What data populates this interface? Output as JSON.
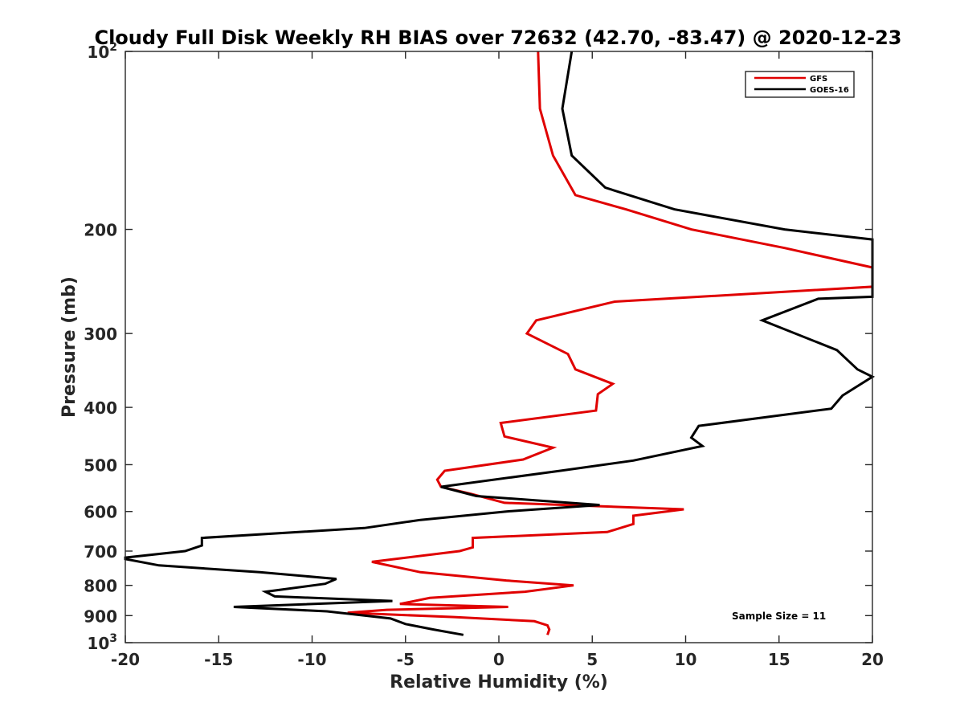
{
  "chart_data": {
    "type": "line",
    "title": "Cloudy Full Disk Weekly RH BIAS over 72632 (42.70, -83.47) @ 2020-12-23",
    "xlabel": "Relative Humidity (%)",
    "ylabel": "Pressure (mb)",
    "xlim": [
      -20,
      20
    ],
    "ylim": [
      100,
      1000
    ],
    "y_scale": "log",
    "y_reversed": true,
    "x_ticks": [
      -20,
      -15,
      -10,
      -5,
      0,
      5,
      10,
      15,
      20
    ],
    "x_tick_labels": [
      "-20",
      "-15",
      "-10",
      "-5",
      "0",
      "5",
      "10",
      "15",
      "20"
    ],
    "y_ticks": [
      100,
      200,
      300,
      400,
      500,
      600,
      700,
      800,
      900,
      1000
    ],
    "y_tick_labels": [
      {
        "base": "10",
        "exp": "2"
      },
      {
        "base": "200",
        "exp": ""
      },
      {
        "base": "300",
        "exp": ""
      },
      {
        "base": "400",
        "exp": ""
      },
      {
        "base": "500",
        "exp": ""
      },
      {
        "base": "600",
        "exp": ""
      },
      {
        "base": "700",
        "exp": ""
      },
      {
        "base": "800",
        "exp": ""
      },
      {
        "base": "900",
        "exp": ""
      },
      {
        "base": "10",
        "exp": "3"
      }
    ],
    "grid": false,
    "legend_position": "top-right",
    "annotation": "Sample Size = 11",
    "series": [
      {
        "name": "GFS",
        "color": "#e00000",
        "points": [
          [
            2.1,
            100
          ],
          [
            2.2,
            125
          ],
          [
            2.9,
            150
          ],
          [
            4.1,
            175
          ],
          [
            6.8,
            185
          ],
          [
            10.3,
            200
          ],
          [
            15.3,
            215
          ],
          [
            20.0,
            232
          ],
          [
            20.0,
            250
          ],
          [
            6.2,
            265
          ],
          [
            2.0,
            285
          ],
          [
            1.5,
            300
          ],
          [
            3.7,
            325
          ],
          [
            4.1,
            345
          ],
          [
            6.1,
            365
          ],
          [
            5.3,
            380
          ],
          [
            5.2,
            405
          ],
          [
            0.1,
            425
          ],
          [
            0.3,
            448
          ],
          [
            2.9,
            468
          ],
          [
            1.3,
            490
          ],
          [
            -2.9,
            512
          ],
          [
            -3.3,
            530
          ],
          [
            -3.1,
            545
          ],
          [
            -1.5,
            560
          ],
          [
            0.3,
            580
          ],
          [
            9.9,
            595
          ],
          [
            7.2,
            610
          ],
          [
            7.2,
            630
          ],
          [
            5.8,
            650
          ],
          [
            -1.4,
            665
          ],
          [
            -1.4,
            690
          ],
          [
            -2.1,
            700
          ],
          [
            -6.8,
            730
          ],
          [
            -4.2,
            760
          ],
          [
            0.4,
            785
          ],
          [
            4.0,
            800
          ],
          [
            1.4,
            820
          ],
          [
            -3.7,
            840
          ],
          [
            -5.3,
            860
          ],
          [
            0.5,
            870
          ],
          [
            -6.0,
            880
          ],
          [
            -8.1,
            890
          ],
          [
            -2.4,
            905
          ],
          [
            1.9,
            920
          ],
          [
            2.6,
            935
          ],
          [
            2.7,
            950
          ],
          [
            2.6,
            970
          ]
        ]
      },
      {
        "name": "GOES-16",
        "color": "#000000",
        "points": [
          [
            3.9,
            100
          ],
          [
            3.4,
            125
          ],
          [
            3.9,
            150
          ],
          [
            5.7,
            170
          ],
          [
            9.4,
            185
          ],
          [
            15.3,
            200
          ],
          [
            20.0,
            208
          ],
          [
            20.0,
            260
          ],
          [
            17.1,
            262
          ],
          [
            14.1,
            285
          ],
          [
            18.1,
            320
          ],
          [
            19.2,
            345
          ],
          [
            20.0,
            355
          ],
          [
            18.4,
            382
          ],
          [
            17.8,
            402
          ],
          [
            10.7,
            430
          ],
          [
            10.3,
            450
          ],
          [
            10.9,
            465
          ],
          [
            7.2,
            492
          ],
          [
            3.3,
            512
          ],
          [
            -3.1,
            545
          ],
          [
            -1.2,
            565
          ],
          [
            5.4,
            585
          ],
          [
            0.4,
            600
          ],
          [
            -4.2,
            620
          ],
          [
            -7.2,
            640
          ],
          [
            -15.9,
            665
          ],
          [
            -15.9,
            685
          ],
          [
            -16.8,
            700
          ],
          [
            -20.0,
            718
          ],
          [
            -20.0,
            722
          ],
          [
            -18.2,
            740
          ],
          [
            -12.8,
            760
          ],
          [
            -8.7,
            780
          ],
          [
            -9.3,
            795
          ],
          [
            -12.5,
            820
          ],
          [
            -12.0,
            835
          ],
          [
            -5.7,
            850
          ],
          [
            -14.2,
            870
          ],
          [
            -9.2,
            885
          ],
          [
            -5.8,
            910
          ],
          [
            -5.0,
            930
          ],
          [
            -3.5,
            950
          ],
          [
            -1.9,
            970
          ]
        ]
      }
    ]
  }
}
